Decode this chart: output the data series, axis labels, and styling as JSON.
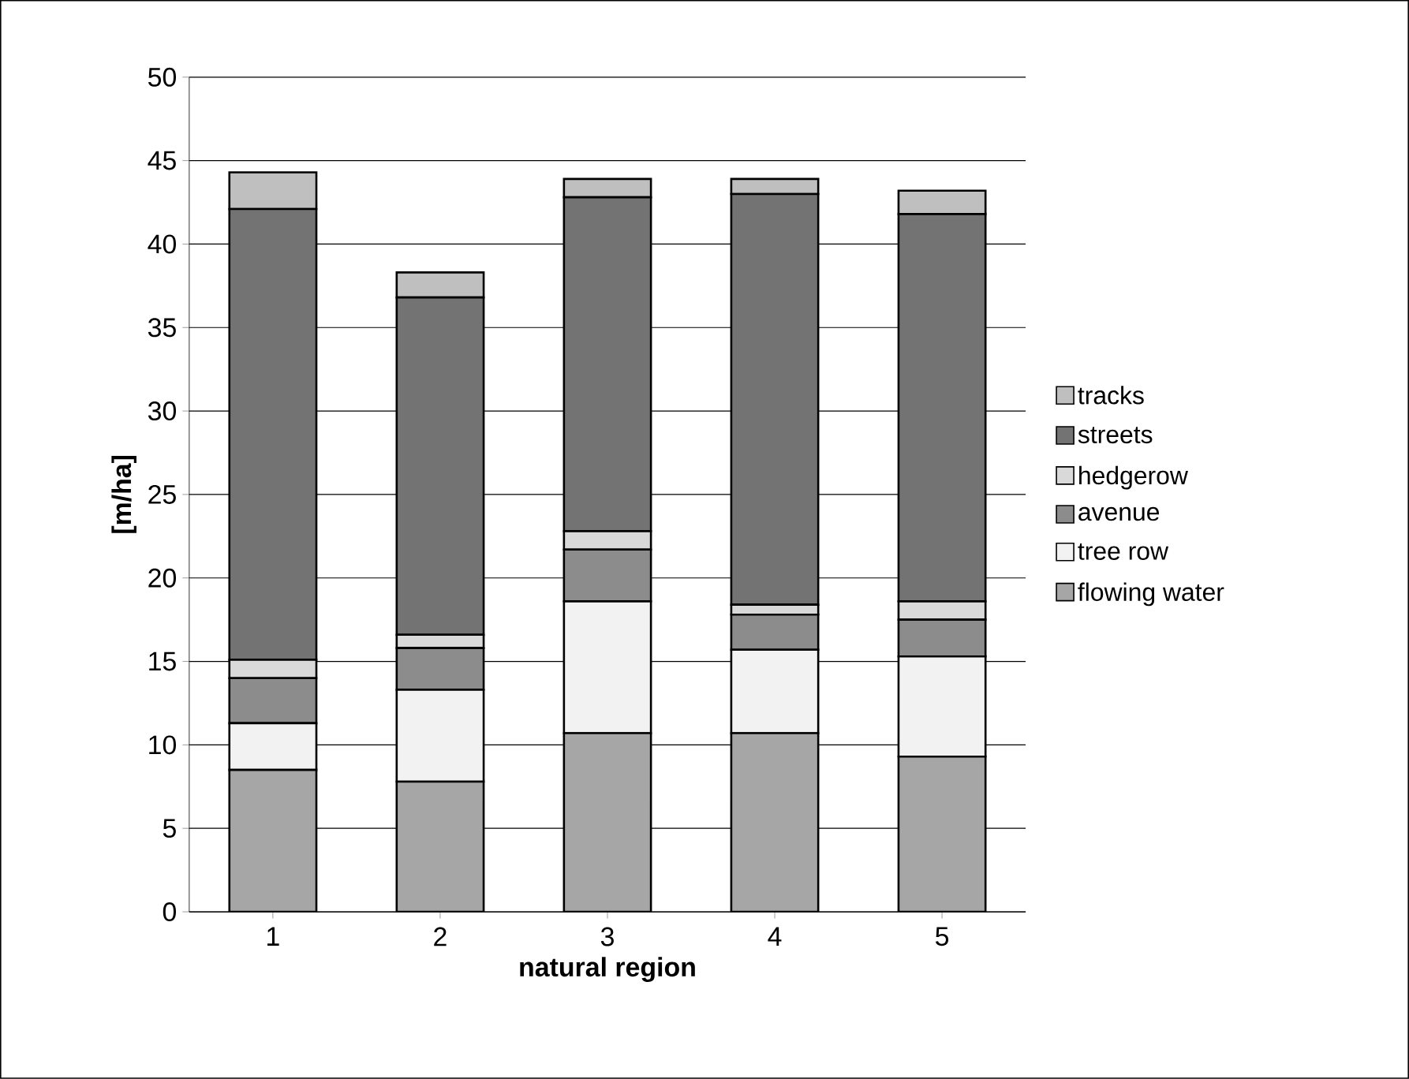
{
  "chart_data": {
    "type": "bar",
    "stacked": true,
    "xlabel": "natural region",
    "ylabel": "[m/ha]",
    "categories": [
      "1",
      "2",
      "3",
      "4",
      "5"
    ],
    "series": [
      {
        "name": "flowing water",
        "color": "#a6a6a6",
        "values": [
          8.5,
          7.8,
          10.7,
          10.7,
          9.3
        ]
      },
      {
        "name": "tree row",
        "color": "#f2f2f2",
        "values": [
          2.8,
          5.5,
          7.9,
          5.0,
          6.0
        ]
      },
      {
        "name": "avenue",
        "color": "#8c8c8c",
        "values": [
          2.7,
          2.5,
          3.1,
          2.1,
          2.2
        ]
      },
      {
        "name": "hedgerow",
        "color": "#d9d9d9",
        "values": [
          1.1,
          0.8,
          1.1,
          0.6,
          1.1
        ]
      },
      {
        "name": "streets",
        "color": "#737373",
        "values": [
          27.0,
          20.2,
          20.0,
          24.6,
          23.2
        ]
      },
      {
        "name": "tracks",
        "color": "#bfbfbf",
        "values": [
          2.2,
          1.5,
          1.1,
          0.9,
          1.4
        ]
      }
    ],
    "ylim": [
      0,
      50
    ],
    "yticks": [
      0,
      5,
      10,
      15,
      20,
      25,
      30,
      35,
      40,
      45,
      50
    ],
    "grid": "y",
    "legend": "right"
  }
}
